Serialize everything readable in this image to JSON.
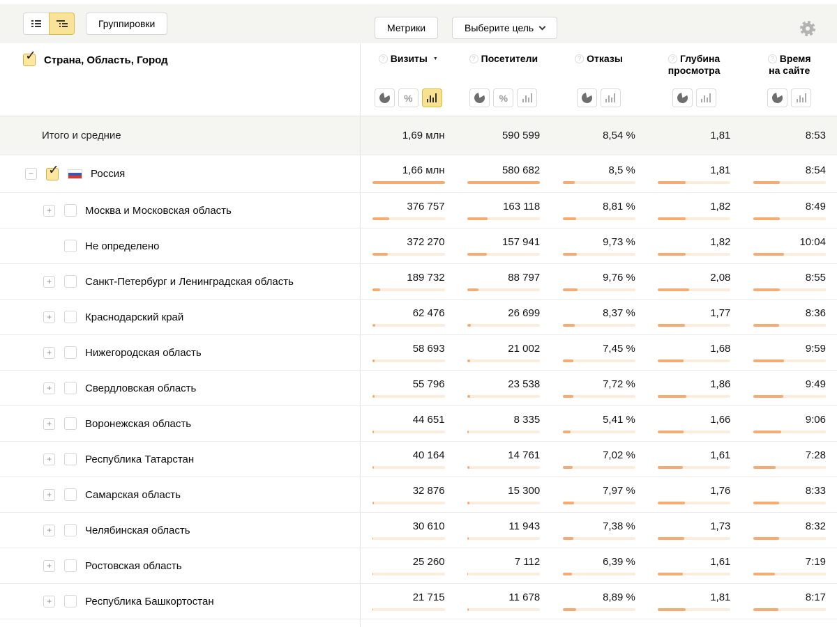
{
  "colors": {
    "accent_yellow_bg": "#f8e18f",
    "accent_yellow_border": "#d9b945",
    "bar_fill": "#f5ab72",
    "bar_track": "#fcecdb",
    "checkbox_checked_bg": "#ffe79e",
    "toolbar_bg": "#f4f4f1",
    "totals_row_bg": "#f5f5f2"
  },
  "toolbar": {
    "groupings": "Группировки",
    "metrics": "Метрики",
    "goal": "Выберите цель",
    "view_toggle": [
      {
        "icon": "list-view-icon",
        "active": false
      },
      {
        "icon": "tree-view-icon",
        "active": true
      }
    ]
  },
  "header": {
    "dimension": "Страна, Область, Город",
    "dimension_checked": true,
    "columns": [
      {
        "label_lines": [
          "Визиты"
        ],
        "sort": "desc",
        "toggles": [
          {
            "type": "pie",
            "active": false
          },
          {
            "type": "percent",
            "active": false
          },
          {
            "type": "bars",
            "active": true
          }
        ]
      },
      {
        "label_lines": [
          "Посетители"
        ],
        "toggles": [
          {
            "type": "pie",
            "active": false
          },
          {
            "type": "percent",
            "active": false
          },
          {
            "type": "bars",
            "active": false
          }
        ]
      },
      {
        "label_lines": [
          "Отказы"
        ],
        "toggles": [
          {
            "type": "pie",
            "active": false
          },
          {
            "type": "bars",
            "active": false
          }
        ]
      },
      {
        "label_lines": [
          "Глубина",
          "просмотра"
        ],
        "toggles": [
          {
            "type": "pie",
            "active": false
          },
          {
            "type": "bars",
            "active": false
          }
        ]
      },
      {
        "label_lines": [
          "Время",
          "на сайте"
        ],
        "toggles": [
          {
            "type": "pie",
            "active": false
          },
          {
            "type": "bars",
            "active": false
          }
        ]
      }
    ]
  },
  "totals": {
    "label": "Итого и средние",
    "values": [
      "1,69 млн",
      "590 599",
      "8,54 %",
      "1,81",
      "8:53"
    ]
  },
  "rows": [
    {
      "label": "Россия",
      "level": 0,
      "expander": "−",
      "checked": true,
      "flag": "russia",
      "values": [
        "1,66 млн",
        "580 682",
        "8,5 %",
        "1,81",
        "8:54"
      ],
      "bars": [
        100,
        100,
        17,
        38,
        37
      ]
    },
    {
      "label": "Москва и Московская область",
      "level": 1,
      "expander": "+",
      "checked": false,
      "values": [
        "376 757",
        "163 118",
        "8,81 %",
        "1,82",
        "8:49"
      ],
      "bars": [
        23,
        28,
        18,
        38,
        37
      ]
    },
    {
      "label": "Не определено",
      "level": 1,
      "expander": null,
      "checked": false,
      "values": [
        "372 270",
        "157 941",
        "9,73 %",
        "1,82",
        "10:04"
      ],
      "bars": [
        22,
        27,
        19,
        38,
        42
      ]
    },
    {
      "label": "Санкт-Петербург и Ленинградская область",
      "level": 1,
      "expander": "+",
      "checked": false,
      "values": [
        "189 732",
        "88 797",
        "9,76 %",
        "2,08",
        "8:55"
      ],
      "bars": [
        11,
        15,
        20,
        43,
        37
      ]
    },
    {
      "label": "Краснодарский край",
      "level": 1,
      "expander": "+",
      "checked": false,
      "values": [
        "62 476",
        "26 699",
        "8,37 %",
        "1,77",
        "8:36"
      ],
      "bars": [
        4,
        4.6,
        17,
        37,
        36
      ]
    },
    {
      "label": "Нижегородская область",
      "level": 1,
      "expander": "+",
      "checked": false,
      "values": [
        "58 693",
        "21 002",
        "7,45 %",
        "1,68",
        "9:59"
      ],
      "bars": [
        3.5,
        3.6,
        15,
        35,
        42
      ]
    },
    {
      "label": "Свердловская область",
      "level": 1,
      "expander": "+",
      "checked": false,
      "values": [
        "55 796",
        "23 538",
        "7,72 %",
        "1,86",
        "9:49"
      ],
      "bars": [
        3.4,
        4.1,
        15,
        39,
        41
      ]
    },
    {
      "label": "Воронежская область",
      "level": 1,
      "expander": "+",
      "checked": false,
      "values": [
        "44 651",
        "8 335",
        "5,41 %",
        "1,66",
        "9:06"
      ],
      "bars": [
        2.7,
        1.4,
        11,
        35,
        38
      ]
    },
    {
      "label": "Республика Татарстан",
      "level": 1,
      "expander": "+",
      "checked": false,
      "values": [
        "40 164",
        "14 761",
        "7,02 %",
        "1,61",
        "7:28"
      ],
      "bars": [
        2.4,
        2.5,
        14,
        34,
        31
      ]
    },
    {
      "label": "Самарская область",
      "level": 1,
      "expander": "+",
      "checked": false,
      "values": [
        "32 876",
        "15 300",
        "7,97 %",
        "1,76",
        "8:33"
      ],
      "bars": [
        2,
        2.6,
        16,
        37,
        36
      ]
    },
    {
      "label": "Челябинская область",
      "level": 1,
      "expander": "+",
      "checked": false,
      "values": [
        "30 610",
        "11 943",
        "7,38 %",
        "1,73",
        "8:32"
      ],
      "bars": [
        1.8,
        2.1,
        15,
        36,
        36
      ]
    },
    {
      "label": "Ростовская область",
      "level": 1,
      "expander": "+",
      "checked": false,
      "values": [
        "25 260",
        "7 112",
        "6,39 %",
        "1,61",
        "7:19"
      ],
      "bars": [
        1.5,
        1.2,
        13,
        34,
        30
      ]
    },
    {
      "label": "Республика Башкортостан",
      "level": 1,
      "expander": "+",
      "checked": false,
      "values": [
        "21 715",
        "11 678",
        "8,89 %",
        "1,81",
        "8:17"
      ],
      "bars": [
        1.3,
        2,
        18,
        38,
        35
      ]
    }
  ]
}
